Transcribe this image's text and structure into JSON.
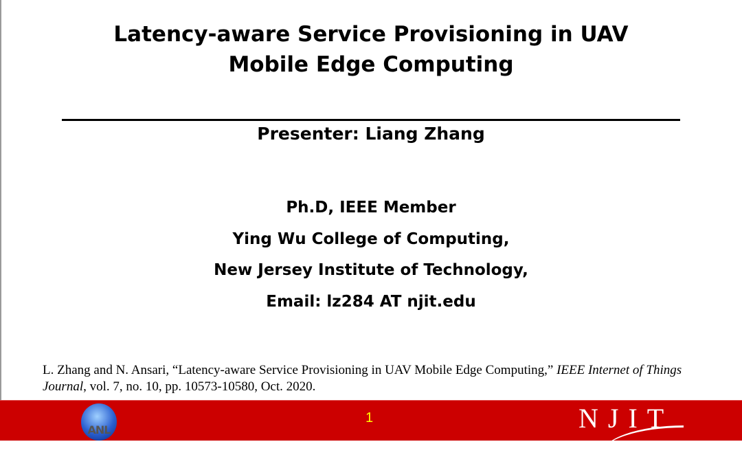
{
  "slide": {
    "title_line1": "Latency-aware Service Provisioning in UAV",
    "title_line2": "Mobile Edge Computing",
    "presenter": "Presenter: Liang Zhang",
    "affiliation": [
      "Ph.D, IEEE Member",
      "Ying Wu College of Computing,",
      "New Jersey Institute of Technology,",
      "Email: lz284 AT njit.edu"
    ],
    "citation": {
      "prefix": "L. Zhang and N. Ansari, “Latency-aware Service Provisioning in UAV Mobile Edge Computing,” ",
      "journal": "IEEE Internet of Things Journal",
      "suffix": ", vol. 7, no. 10, pp. 10573-10580, Oct. 2020."
    }
  },
  "footer": {
    "page_number": "1",
    "left_logo": "ANL",
    "right_logo": "NJIT",
    "background_color": "#cc0000",
    "page_number_color": "#ffff00"
  }
}
